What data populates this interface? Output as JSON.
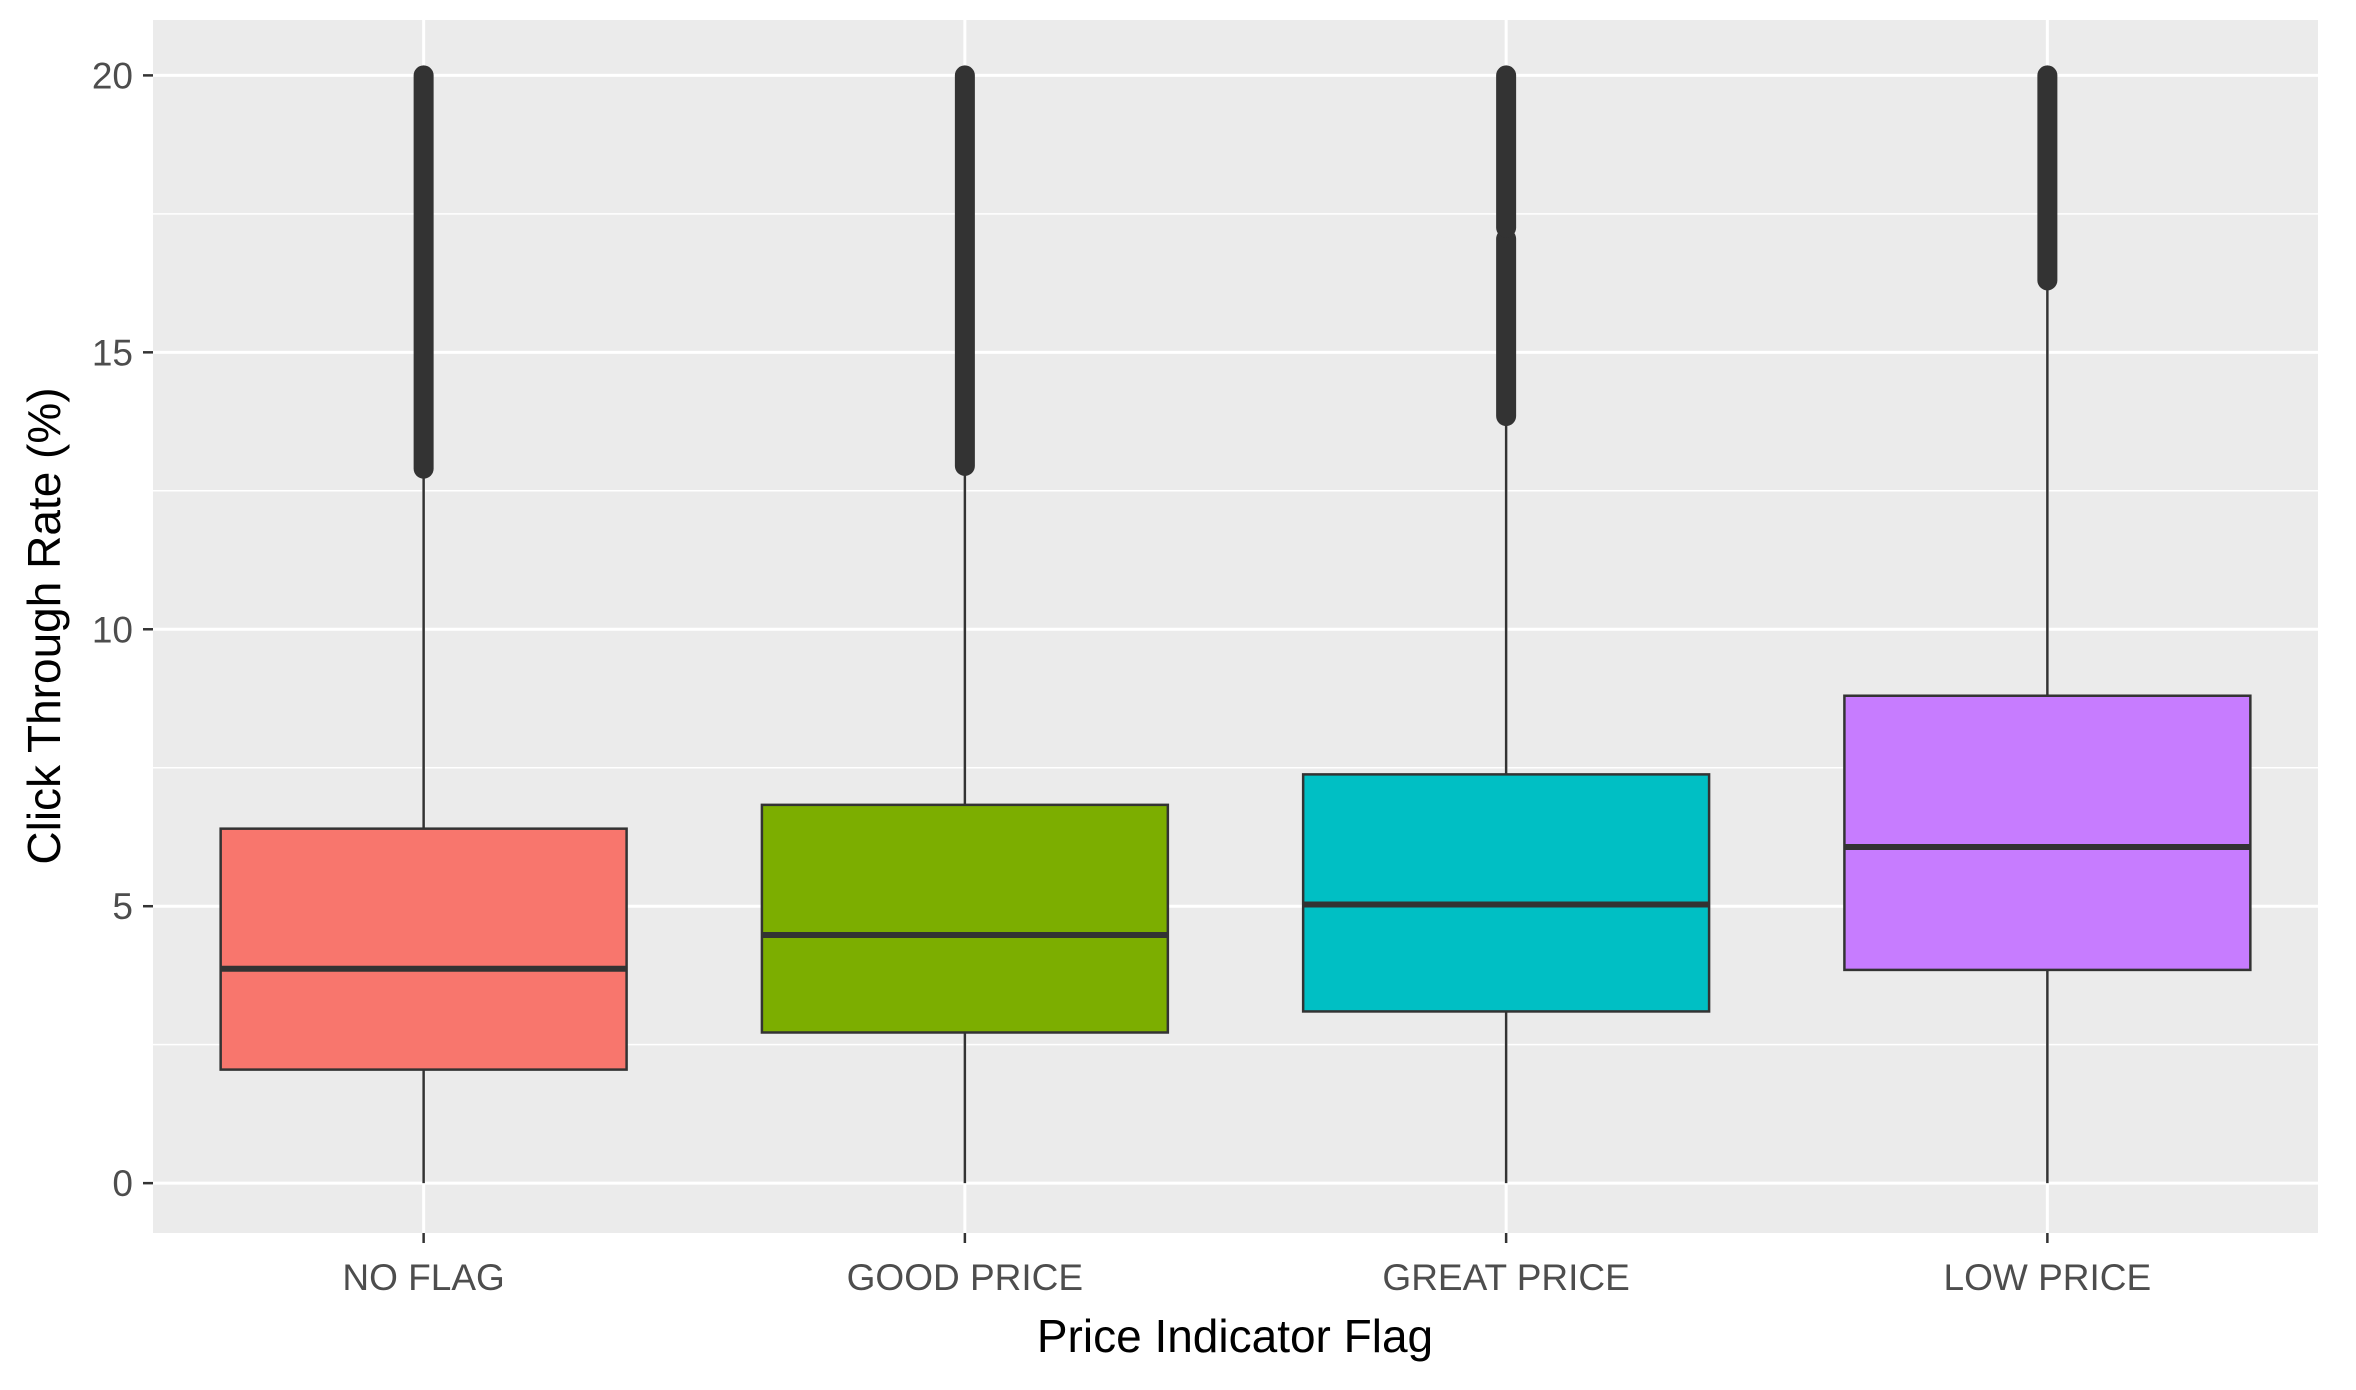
{
  "chart_data": {
    "type": "boxplot",
    "xlabel": "Price Indicator Flag",
    "ylabel": "Click Through Rate (%)",
    "ylim": [
      -0.9,
      21.0
    ],
    "y_ticks": [
      0,
      5,
      10,
      15,
      20
    ],
    "y_minor_ticks": [
      2.5,
      7.5,
      12.5,
      17.5
    ],
    "grid": true,
    "legend": "none",
    "panel_color": "#EBEBEB",
    "categories": [
      "NO FLAG",
      "GOOD PRICE",
      "GREAT PRICE",
      "LOW PRICE"
    ],
    "boxes": [
      {
        "category": "NO FLAG",
        "color": "#F8766D",
        "whisker_low": 0.0,
        "q1": 2.05,
        "median": 3.87,
        "q3": 6.4,
        "whisker_high": 12.9,
        "outliers": [
          [
            12.9,
            20.0
          ]
        ]
      },
      {
        "category": "GOOD PRICE",
        "color": "#7CAE00",
        "whisker_low": 0.0,
        "q1": 2.72,
        "median": 4.48,
        "q3": 6.83,
        "whisker_high": 12.95,
        "outliers": [
          [
            12.95,
            20.0
          ]
        ]
      },
      {
        "category": "GREAT PRICE",
        "color": "#00BFC4",
        "whisker_low": 0.0,
        "q1": 3.1,
        "median": 5.03,
        "q3": 7.38,
        "whisker_high": 13.85,
        "outliers": [
          [
            13.85,
            17.05
          ],
          [
            17.25,
            20.0
          ]
        ]
      },
      {
        "category": "LOW PRICE",
        "color": "#C77CFF",
        "whisker_low": 0.0,
        "q1": 3.85,
        "median": 6.07,
        "q3": 8.8,
        "whisker_high": 16.3,
        "outliers": [
          [
            16.3,
            20.0
          ]
        ]
      }
    ]
  }
}
